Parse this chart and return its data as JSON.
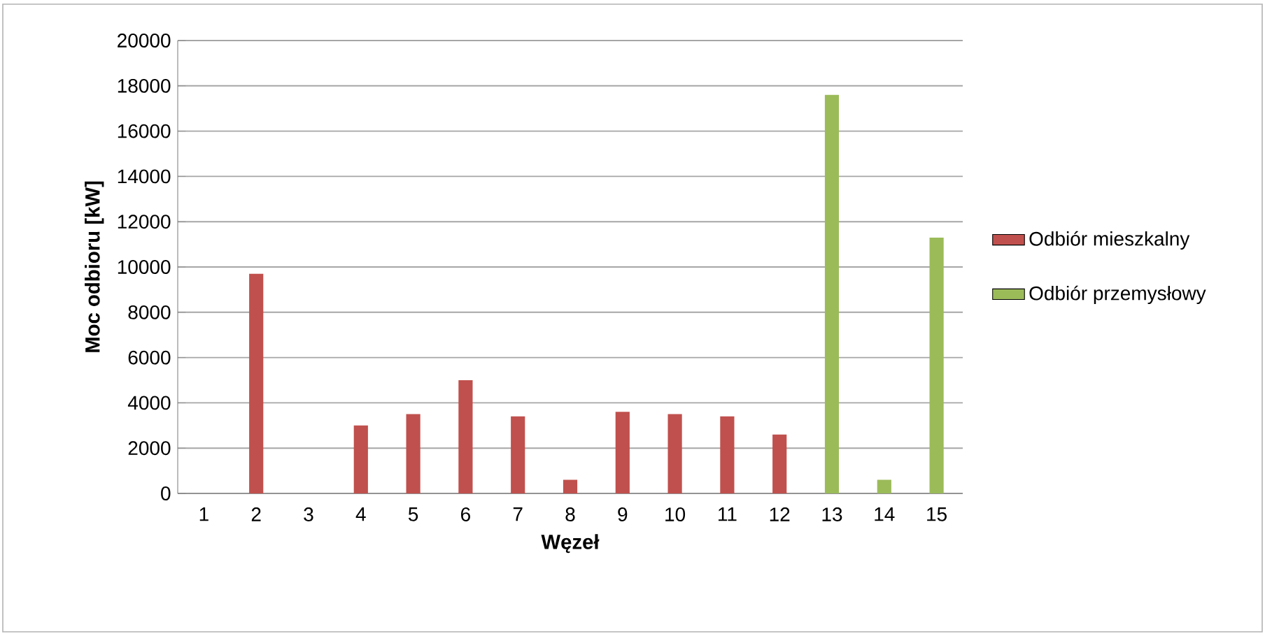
{
  "chart_data": {
    "type": "bar",
    "xlabel": "Węzeł",
    "ylabel": "Moc odbioru [kW]",
    "categories": [
      "1",
      "2",
      "3",
      "4",
      "5",
      "6",
      "7",
      "8",
      "9",
      "10",
      "11",
      "12",
      "13",
      "14",
      "15"
    ],
    "series": [
      {
        "name": "Odbiór mieszkalny",
        "color": "#c0504d",
        "values": [
          null,
          9700,
          null,
          3000,
          3500,
          5000,
          3400,
          600,
          3600,
          3500,
          3400,
          2600,
          null,
          null,
          null
        ]
      },
      {
        "name": "Odbiór przemysłowy",
        "color": "#9bbb59",
        "values": [
          null,
          null,
          null,
          null,
          null,
          null,
          null,
          null,
          null,
          null,
          null,
          null,
          17600,
          600,
          11300
        ]
      }
    ],
    "stacked": true,
    "ylim": [
      0,
      20000
    ],
    "yticks": [
      0,
      2000,
      4000,
      6000,
      8000,
      10000,
      12000,
      14000,
      16000,
      18000,
      20000
    ],
    "grid": "y",
    "legend": "right"
  }
}
